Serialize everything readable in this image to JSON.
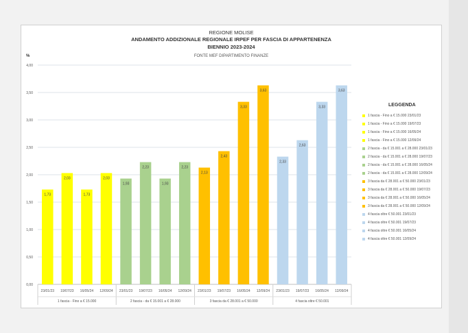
{
  "chart_data": {
    "type": "bar",
    "title": "REGIONE MOLISE",
    "subtitle": [
      "ANDAMENTO ADDIZIONALE REGIONALE IRPEF PER FASCIA DI APPARTENENZA",
      "BIENNIO 2023-2024"
    ],
    "source": "FONTE MEF DIPARTIMENTO FINANZE",
    "ylabel": "%",
    "ylim": [
      0,
      4
    ],
    "yticks": [
      "0,00",
      "0,50",
      "1,00",
      "1,50",
      "2,00",
      "2,50",
      "3,00",
      "3,50",
      "4,00"
    ],
    "grid": true,
    "legend_title": "LEGGENDA",
    "legend_position": "right",
    "groups": [
      {
        "label": "1 fascia - Fino a € 15.000",
        "color": "#ffff00",
        "dates": [
          "23/01/23",
          "19/07/23",
          "16/05/24",
          "12/09/24"
        ],
        "values": [
          1.73,
          2.03,
          1.73,
          2.03
        ],
        "value_labels": [
          "1,73",
          "2,03",
          "1,73",
          "2,03"
        ]
      },
      {
        "label": "2 fascia - da € 15.001 a € 28.000",
        "color": "#a9d18e",
        "dates": [
          "23/01/23",
          "19/07/23",
          "16/05/24",
          "12/09/24"
        ],
        "values": [
          1.93,
          2.23,
          1.93,
          2.23
        ],
        "value_labels": [
          "1,93",
          "2,23",
          "1,93",
          "2,23"
        ]
      },
      {
        "label": "3 fascia da € 28.001 a € 50.000",
        "color": "#ffc000",
        "dates": [
          "23/01/23",
          "19/07/23",
          "16/05/24",
          "12/09/24"
        ],
        "values": [
          2.13,
          2.43,
          3.33,
          3.63
        ],
        "value_labels": [
          "2,13",
          "2,43",
          "3,33",
          "3,63"
        ]
      },
      {
        "label": "4 fascia oltre € 50.001",
        "color": "#bdd7ee",
        "dates": [
          "23/01/23",
          "19/07/23",
          "16/05/24",
          "12/09/24"
        ],
        "values": [
          2.33,
          2.63,
          3.33,
          3.63
        ],
        "value_labels": [
          "2,33",
          "2,63",
          "3,33",
          "3,63"
        ]
      }
    ],
    "legend": [
      {
        "label": "1 fascia - Fino a € 15.000 23/01/23",
        "color": "#ffff00"
      },
      {
        "label": "1 fascia - Fino a € 15.000 19/07/23",
        "color": "#ffff00"
      },
      {
        "label": "1 fascia - Fino a € 15.000 16/05/24",
        "color": "#ffff00"
      },
      {
        "label": "1 fascia - Fino a € 15.000 12/09/24",
        "color": "#ffff00"
      },
      {
        "label": "2 fascia - da € 15.001 a € 28.000 23/01/23",
        "color": "#a9d18e"
      },
      {
        "label": "2 fascia - da € 15.001 a € 28.000 19/07/23",
        "color": "#a9d18e"
      },
      {
        "label": "2 fascia - da € 15.001 a € 28.000 16/05/24",
        "color": "#a9d18e"
      },
      {
        "label": "2 fascia - da € 15.001 a € 28.000 12/09/24",
        "color": "#a9d18e"
      },
      {
        "label": "3 fascia da € 28.001 a € 50.000 23/01/23",
        "color": "#ffc000"
      },
      {
        "label": "3 fascia da € 28.001 a € 50.000 19/07/23",
        "color": "#ffc000"
      },
      {
        "label": "3 fascia da € 28.001 a € 50.000 16/05/24",
        "color": "#ffc000"
      },
      {
        "label": "3 fascia da € 28.001 a € 50.000 12/09/24",
        "color": "#ffc000"
      },
      {
        "label": "4 fascia oltre € 50.001 23/01/23",
        "color": "#bdd7ee"
      },
      {
        "label": "4 fascia oltre € 50.001 19/07/23",
        "color": "#bdd7ee"
      },
      {
        "label": "4 fascia oltre € 50.001 16/05/24",
        "color": "#bdd7ee"
      },
      {
        "label": "4 fascia oltre € 50.001 12/09/24",
        "color": "#bdd7ee"
      }
    ]
  }
}
